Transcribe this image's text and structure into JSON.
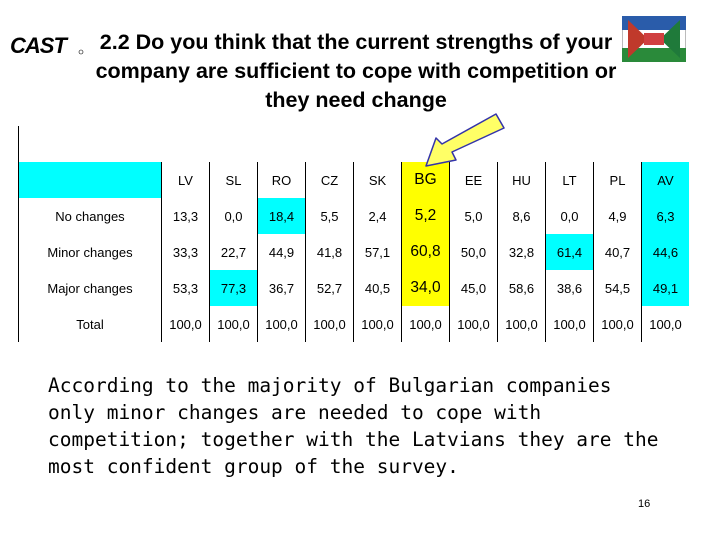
{
  "logo": {
    "text": "CAST"
  },
  "title": "2.2 Do you think that the current strengths of your company are sufficient to cope with competition or they need change",
  "table": {
    "headers": [
      "",
      "LV",
      "SL",
      "RO",
      "CZ",
      "SK",
      "BG",
      "EE",
      "HU",
      "LT",
      "PL",
      "AV"
    ],
    "rows": [
      {
        "label": "No changes",
        "values": [
          "13,3",
          "0,0",
          "18,4",
          "5,5",
          "2,4",
          "5,2",
          "5,0",
          "8,6",
          "0,0",
          "4,9",
          "6,3"
        ]
      },
      {
        "label": "Minor changes",
        "values": [
          "33,3",
          "22,7",
          "44,9",
          "41,8",
          "57,1",
          "60,8",
          "50,0",
          "32,8",
          "61,4",
          "40,7",
          "44,6"
        ]
      },
      {
        "label": "Major changes",
        "values": [
          "53,3",
          "77,3",
          "36,7",
          "52,7",
          "40,5",
          "34,0",
          "45,0",
          "58,6",
          "38,6",
          "54,5",
          "49,1"
        ]
      },
      {
        "label": "Total",
        "values": [
          "100,0",
          "100,0",
          "100,0",
          "100,0",
          "100,0",
          "100,0",
          "100,0",
          "100,0",
          "100,0",
          "100,0",
          "100,0"
        ]
      }
    ]
  },
  "summary": "According to the majority of Bulgarian companies only minor changes are needed to cope with competition; together with the Latvians they are the most confident group of the survey.",
  "page_number": "16",
  "colors": {
    "highlight_cyan": "#00ffff",
    "highlight_yellow": "#ffff00",
    "arrow_fill": "#ffff66",
    "arrow_stroke": "#3333aa"
  }
}
